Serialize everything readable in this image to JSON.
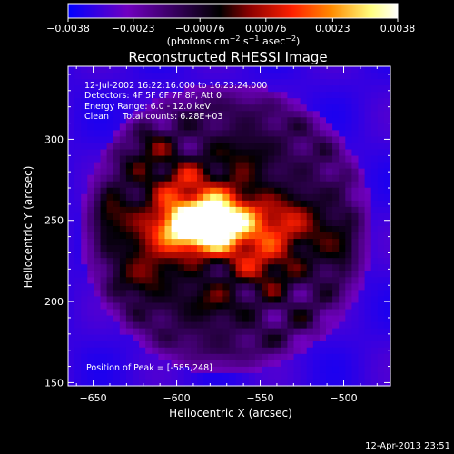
{
  "chart_data": {
    "type": "heatmap",
    "title": "Reconstructed RHESSI Image",
    "xlabel": "Heliocentric X (arcsec)",
    "ylabel": "Heliocentric Y (arcsec)",
    "xlim": [
      -665,
      -472
    ],
    "ylim": [
      148,
      345
    ],
    "x_ticks": [
      -650,
      -600,
      -550,
      -500
    ],
    "y_ticks": [
      150,
      200,
      250,
      300
    ],
    "x_tick_labels": [
      "−650",
      "−600",
      "−550",
      "−500"
    ],
    "y_tick_labels": [
      "150",
      "200",
      "250",
      "300"
    ],
    "colorbar": {
      "range": [
        -0.0038,
        0.0038
      ],
      "ticks": [
        -0.0038,
        -0.0023,
        -0.00076,
        0.00076,
        0.0023,
        0.0038
      ],
      "tick_labels": [
        "−0.0038",
        "−0.0023",
        "−0.00076",
        "0.00076",
        "0.0023",
        "0.0038"
      ],
      "units_prefix": "(photons cm",
      "units_exp1": "−2",
      "units_mid1": " s",
      "units_exp2": "−1",
      "units_mid2": " asec",
      "units_exp3": "−2",
      "units_suffix": ")",
      "colormap": [
        "#0000ff",
        "#7000c0",
        "#000000",
        "#8b0000",
        "#ff2000",
        "#ff8c00",
        "#ffff80",
        "#ffffff"
      ]
    },
    "annotations": [
      "12-Jul-2002 16:22:16.000 to 16:23:24.000",
      "Detectors: 4F 5F 6F 7F 8F, Att 0",
      "Energy Range: 6.0 - 12.0 keV",
      "Clean     Total counts: 6.28E+03"
    ],
    "peak_label": "Position of Peak = [-585,248]",
    "peak": {
      "x": -585,
      "y": 248
    },
    "footer": "12-Apr-2013 23:51",
    "sources": [
      {
        "x": -585,
        "y": 248,
        "amp": 1.0,
        "sx": 14,
        "sy": 9
      },
      {
        "x": -575,
        "y": 255,
        "amp": 0.55,
        "sx": 22,
        "sy": 14
      },
      {
        "x": -605,
        "y": 240,
        "amp": 0.35,
        "sx": 18,
        "sy": 12
      },
      {
        "x": -560,
        "y": 238,
        "amp": 0.35,
        "sx": 20,
        "sy": 12
      },
      {
        "x": -530,
        "y": 250,
        "amp": 0.3,
        "sx": 12,
        "sy": 10
      },
      {
        "x": -545,
        "y": 220,
        "amp": 0.28,
        "sx": 12,
        "sy": 10
      },
      {
        "x": -600,
        "y": 275,
        "amp": 0.28,
        "sx": 14,
        "sy": 10
      },
      {
        "x": -620,
        "y": 215,
        "amp": 0.25,
        "sx": 12,
        "sy": 10
      },
      {
        "x": -640,
        "y": 255,
        "amp": 0.22,
        "sx": 10,
        "sy": 10
      },
      {
        "x": -580,
        "y": 200,
        "amp": 0.22,
        "sx": 14,
        "sy": 9
      },
      {
        "x": -505,
        "y": 235,
        "amp": 0.2,
        "sx": 10,
        "sy": 10
      },
      {
        "x": -560,
        "y": 290,
        "amp": 0.2,
        "sx": 12,
        "sy": 9
      },
      {
        "x": -620,
        "y": 295,
        "amp": 0.2,
        "sx": 10,
        "sy": 9
      }
    ],
    "speckle": {
      "amp": 0.23,
      "fx": 0.19,
      "fy": 0.21
    },
    "disk": {
      "cx": -570,
      "cy": 245,
      "rx": 88,
      "ry": 90,
      "outside": -0.32
    },
    "vmin": -0.45,
    "vmax": 1.05
  }
}
